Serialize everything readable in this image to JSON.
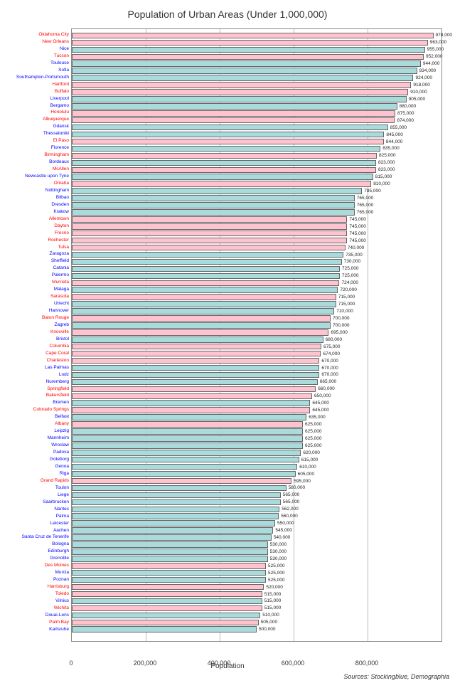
{
  "chart": {
    "title": "Population of Urban Areas (Under 1,000,000)",
    "xlabel": "Population",
    "source": "Sources: Stockingblue, Demographia",
    "xmax": 1000000,
    "xticks": [
      0,
      200000,
      400000,
      600000,
      800000
    ],
    "xtick_labels": [
      "0",
      "200,000",
      "400,000",
      "600,000",
      "800,000"
    ],
    "colors": {
      "red_bar": "#ffc3cf",
      "blue_bar": "#a9dbdd",
      "red_text": "#ff0000",
      "blue_text": "#0000ff",
      "grid": "#bbbbbb",
      "border": "#888888"
    },
    "bars": [
      {
        "label": "Oklahoma City",
        "value": 978000,
        "value_label": "978,000",
        "group": "red"
      },
      {
        "label": "New Orleans",
        "value": 963000,
        "value_label": "963,000",
        "group": "red"
      },
      {
        "label": "Nice",
        "value": 955000,
        "value_label": "955,000",
        "group": "blue"
      },
      {
        "label": "Tucson",
        "value": 952000,
        "value_label": "952,000",
        "group": "red"
      },
      {
        "label": "Toulouse",
        "value": 944000,
        "value_label": "944,000",
        "group": "blue"
      },
      {
        "label": "Sofia",
        "value": 934000,
        "value_label": "934,000",
        "group": "blue"
      },
      {
        "label": "Southampton-Portsmouth",
        "value": 924000,
        "value_label": "924,000",
        "group": "blue"
      },
      {
        "label": "Hartford",
        "value": 918000,
        "value_label": "918,000",
        "group": "red"
      },
      {
        "label": "Buffalo",
        "value": 910000,
        "value_label": "910,000",
        "group": "red"
      },
      {
        "label": "Liverpool",
        "value": 905000,
        "value_label": "905,000",
        "group": "blue"
      },
      {
        "label": "Bergamo",
        "value": 880000,
        "value_label": "880,000",
        "group": "blue"
      },
      {
        "label": "Honolulu",
        "value": 875000,
        "value_label": "875,000",
        "group": "red"
      },
      {
        "label": "Albuquerque",
        "value": 874000,
        "value_label": "874,000",
        "group": "red"
      },
      {
        "label": "Gdansk",
        "value": 855000,
        "value_label": "855,000",
        "group": "blue"
      },
      {
        "label": "Thessaloniki",
        "value": 845000,
        "value_label": "845,000",
        "group": "blue"
      },
      {
        "label": "El Paso",
        "value": 844000,
        "value_label": "844,000",
        "group": "red"
      },
      {
        "label": "Florence",
        "value": 835000,
        "value_label": "835,000",
        "group": "blue"
      },
      {
        "label": "Birmingham",
        "value": 825000,
        "value_label": "825,000",
        "group": "red"
      },
      {
        "label": "Bordeaux",
        "value": 823000,
        "value_label": "823,000",
        "group": "blue"
      },
      {
        "label": "McAllen",
        "value": 823000,
        "value_label": "823,000",
        "group": "red"
      },
      {
        "label": "Newcastle upon Tyne",
        "value": 815000,
        "value_label": "815,000",
        "group": "blue"
      },
      {
        "label": "Omaha",
        "value": 810000,
        "value_label": "810,000",
        "group": "red"
      },
      {
        "label": "Nottingham",
        "value": 785000,
        "value_label": "785,000",
        "group": "blue"
      },
      {
        "label": "Bilbao",
        "value": 765000,
        "value_label": "765,000",
        "group": "blue"
      },
      {
        "label": "Dresden",
        "value": 765000,
        "value_label": "765,000",
        "group": "blue"
      },
      {
        "label": "Krakow",
        "value": 765000,
        "value_label": "765,000",
        "group": "blue"
      },
      {
        "label": "Allentown",
        "value": 745000,
        "value_label": "745,000",
        "group": "red"
      },
      {
        "label": "Dayton",
        "value": 745000,
        "value_label": "745,000",
        "group": "red"
      },
      {
        "label": "Fresno",
        "value": 745000,
        "value_label": "745,000",
        "group": "red"
      },
      {
        "label": "Rochester",
        "value": 745000,
        "value_label": "745,000",
        "group": "red"
      },
      {
        "label": "Tulsa",
        "value": 740000,
        "value_label": "740,000",
        "group": "red"
      },
      {
        "label": "Zaragoza",
        "value": 735000,
        "value_label": "735,000",
        "group": "blue"
      },
      {
        "label": "Sheffield",
        "value": 730000,
        "value_label": "730,000",
        "group": "blue"
      },
      {
        "label": "Catania",
        "value": 725000,
        "value_label": "725,000",
        "group": "blue"
      },
      {
        "label": "Palermo",
        "value": 725000,
        "value_label": "725,000",
        "group": "blue"
      },
      {
        "label": "Murrieta",
        "value": 724000,
        "value_label": "724,000",
        "group": "red"
      },
      {
        "label": "Malaga",
        "value": 720000,
        "value_label": "720,000",
        "group": "blue"
      },
      {
        "label": "Sarasota",
        "value": 715000,
        "value_label": "715,000",
        "group": "red"
      },
      {
        "label": "Utrecht",
        "value": 715000,
        "value_label": "715,000",
        "group": "blue"
      },
      {
        "label": "Hannover",
        "value": 710000,
        "value_label": "710,000",
        "group": "blue"
      },
      {
        "label": "Baton Rouge",
        "value": 700000,
        "value_label": "700,000",
        "group": "red"
      },
      {
        "label": "Zagreb",
        "value": 700000,
        "value_label": "700,000",
        "group": "blue"
      },
      {
        "label": "Knoxville",
        "value": 695000,
        "value_label": "695,000",
        "group": "red"
      },
      {
        "label": "Bristol",
        "value": 680000,
        "value_label": "680,000",
        "group": "blue"
      },
      {
        "label": "Columbia",
        "value": 675000,
        "value_label": "675,000",
        "group": "red"
      },
      {
        "label": "Cape Coral",
        "value": 674000,
        "value_label": "674,000",
        "group": "red"
      },
      {
        "label": "Charleston",
        "value": 670000,
        "value_label": "670,000",
        "group": "red"
      },
      {
        "label": "Las Palmas",
        "value": 670000,
        "value_label": "670,000",
        "group": "blue"
      },
      {
        "label": "Lodz",
        "value": 670000,
        "value_label": "670,000",
        "group": "blue"
      },
      {
        "label": "Nuremberg",
        "value": 665000,
        "value_label": "665,000",
        "group": "blue"
      },
      {
        "label": "Springfield",
        "value": 660000,
        "value_label": "660,000",
        "group": "red"
      },
      {
        "label": "Bakersfield",
        "value": 650000,
        "value_label": "650,000",
        "group": "red"
      },
      {
        "label": "Bremen",
        "value": 645000,
        "value_label": "645,000",
        "group": "blue"
      },
      {
        "label": "Colorado Springs",
        "value": 645000,
        "value_label": "645,000",
        "group": "red"
      },
      {
        "label": "Belfast",
        "value": 635000,
        "value_label": "635,000",
        "group": "blue"
      },
      {
        "label": "Albany",
        "value": 625000,
        "value_label": "625,000",
        "group": "red"
      },
      {
        "label": "Leipzig",
        "value": 625000,
        "value_label": "625,000",
        "group": "blue"
      },
      {
        "label": "Mannheim",
        "value": 625000,
        "value_label": "625,000",
        "group": "blue"
      },
      {
        "label": "Wroclaw",
        "value": 625000,
        "value_label": "625,000",
        "group": "blue"
      },
      {
        "label": "Padova",
        "value": 620000,
        "value_label": "620,000",
        "group": "blue"
      },
      {
        "label": "Goteborg",
        "value": 615000,
        "value_label": "615,000",
        "group": "blue"
      },
      {
        "label": "Genoa",
        "value": 610000,
        "value_label": "610,000",
        "group": "blue"
      },
      {
        "label": "Riga",
        "value": 605000,
        "value_label": "605,000",
        "group": "blue"
      },
      {
        "label": "Grand Rapids",
        "value": 595000,
        "value_label": "595,000",
        "group": "red"
      },
      {
        "label": "Toulon",
        "value": 580000,
        "value_label": "580,000",
        "group": "blue"
      },
      {
        "label": "Liege",
        "value": 565000,
        "value_label": "565,000",
        "group": "blue"
      },
      {
        "label": "Saarbrucken",
        "value": 565000,
        "value_label": "565,000",
        "group": "blue"
      },
      {
        "label": "Nantes",
        "value": 562000,
        "value_label": "562,000",
        "group": "blue"
      },
      {
        "label": "Palma",
        "value": 560000,
        "value_label": "560,000",
        "group": "blue"
      },
      {
        "label": "Leicester",
        "value": 550000,
        "value_label": "550,000",
        "group": "blue"
      },
      {
        "label": "Aachen",
        "value": 545000,
        "value_label": "545,000",
        "group": "blue"
      },
      {
        "label": "Santa Cruz de Tenerife",
        "value": 540000,
        "value_label": "540,000",
        "group": "blue"
      },
      {
        "label": "Bologna",
        "value": 530000,
        "value_label": "530,000",
        "group": "blue"
      },
      {
        "label": "Edinburgh",
        "value": 530000,
        "value_label": "530,000",
        "group": "blue"
      },
      {
        "label": "Grenoble",
        "value": 530000,
        "value_label": "530,000",
        "group": "blue"
      },
      {
        "label": "Des Moines",
        "value": 525000,
        "value_label": "525,000",
        "group": "red"
      },
      {
        "label": "Murcia",
        "value": 525000,
        "value_label": "525,000",
        "group": "blue"
      },
      {
        "label": "Poznan",
        "value": 525000,
        "value_label": "525,000",
        "group": "blue"
      },
      {
        "label": "Harrisburg",
        "value": 520000,
        "value_label": "520,000",
        "group": "red"
      },
      {
        "label": "Toledo",
        "value": 515000,
        "value_label": "515,000",
        "group": "red"
      },
      {
        "label": "Vilnius",
        "value": 515000,
        "value_label": "515,000",
        "group": "blue"
      },
      {
        "label": "Wichita",
        "value": 515000,
        "value_label": "515,000",
        "group": "red"
      },
      {
        "label": "Douai-Lens",
        "value": 510000,
        "value_label": "510,000",
        "group": "blue"
      },
      {
        "label": "Palm Bay",
        "value": 505000,
        "value_label": "505,000",
        "group": "red"
      },
      {
        "label": "Karlsruhe",
        "value": 500000,
        "value_label": "500,000",
        "group": "blue"
      }
    ]
  }
}
